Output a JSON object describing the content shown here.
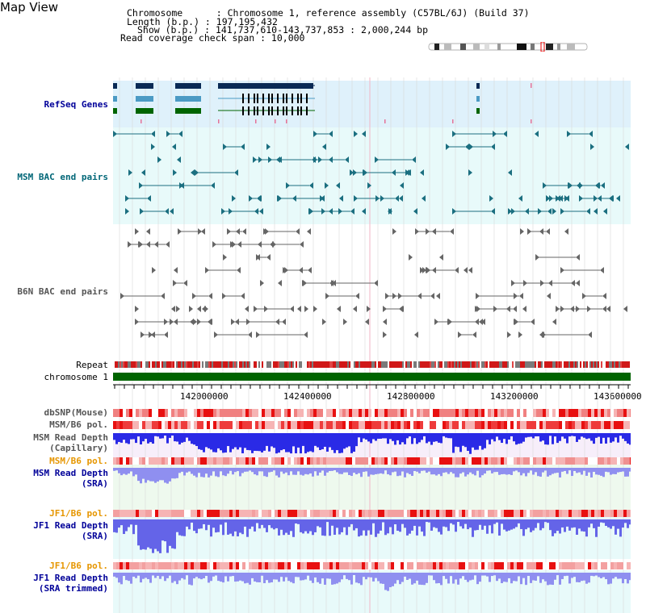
{
  "header": {
    "title": "Map View",
    "chromosome": "Chromosome      : Chromosome 1, reference assembly (C57BL/6J) (Build 37)",
    "length": "Length (b.p.) : 197,195,432",
    "show": "Show (b.p.) : 141,737,610-143,737,853 : 2,000,244 bp",
    "coverage": "Read coverage check span : 10,000"
  },
  "tracks": {
    "refseq": "RefSeq Genes",
    "msm_bac": "MSM BAC end pairs",
    "b6n_bac": "B6N BAC end pairs",
    "repeat": "Repeat",
    "chromosome": "chromosome 1",
    "dbsnp": "dbSNP(Mouse)",
    "msm_pol": "MSM/B6 pol.",
    "msm_depth_cap_1": "MSM Read Depth",
    "msm_depth_cap_2": "(Capillary)",
    "msm_pol2": "MSM/B6 pol.",
    "msm_depth_sra_1": "MSM Read Depth",
    "msm_depth_sra_2": "(SRA)",
    "jf1_pol": "JF1/B6 pol.",
    "jf1_depth_1": "JF1 Read Depth",
    "jf1_depth_2": "(SRA)",
    "jf1_pol2": "JF1/B6 pol.",
    "jf1_trim_1": "JF1 Read Depth",
    "jf1_trim_2": "(SRA trimmed)"
  },
  "axis": {
    "ticks": [
      "142000000",
      "142400000",
      "142800000",
      "143200000",
      "143600000"
    ]
  },
  "colors": {
    "refseq_bg": "#dff1fb",
    "msm_bg": "#e8fafa",
    "msm_feature": "#1b6f80",
    "b6n_feature": "#666666",
    "chromosome_bar": "#006400",
    "depth_blue": "#2a2ae6",
    "depth_light": "#8f8ff0",
    "pol_red": "#ee3b3b",
    "label_navy": "#000099",
    "label_orange": "#e69600",
    "label_teal": "#006677"
  }
}
